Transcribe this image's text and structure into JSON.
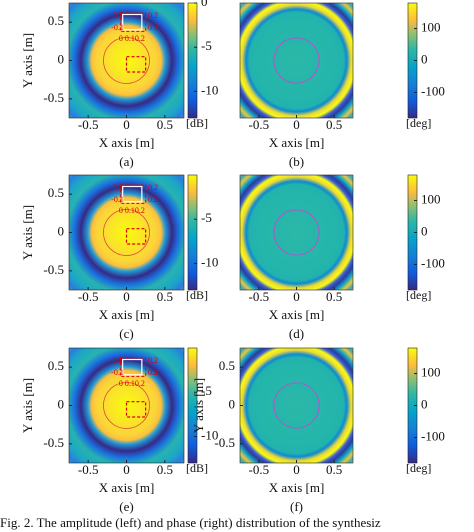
{
  "chart_data": [
    {
      "type": "heatmap",
      "kind": "amplitude",
      "xlabel": "X axis [m]",
      "ylabel": "Y axis [m]",
      "xlim": [
        -0.75,
        0.75
      ],
      "ylim": [
        -0.75,
        0.75
      ],
      "xticks": [
        -0.5,
        0,
        0.5
      ],
      "yticks": [
        0.5,
        0,
        -0.5
      ],
      "clim": [
        -13,
        0
      ],
      "cticks": [
        0,
        -5,
        -10
      ],
      "cunit": "[dB]",
      "caption": "(a)",
      "annotations": [
        "0.1",
        "0.2",
        "-0.1",
        "0.1",
        "0 0.10.2"
      ]
    },
    {
      "type": "heatmap",
      "kind": "phase",
      "xlabel": "X axis [m]",
      "xlim": [
        -0.75,
        0.75
      ],
      "ylim": [
        -0.75,
        0.75
      ],
      "xticks": [
        -0.5,
        0,
        0.5
      ],
      "clim": [
        -180,
        180
      ],
      "cticks": [
        100,
        0,
        -100
      ],
      "cunit": "[deg]",
      "caption": "(b)"
    },
    {
      "type": "heatmap",
      "kind": "amplitude",
      "xlabel": "X axis [m]",
      "ylabel": "Y axis [m]",
      "xlim": [
        -0.75,
        0.75
      ],
      "ylim": [
        -0.75,
        0.75
      ],
      "xticks": [
        -0.5,
        0,
        0.5
      ],
      "yticks": [
        0.5,
        0,
        -0.5
      ],
      "clim": [
        -13,
        0
      ],
      "cticks": [
        -5,
        -10
      ],
      "cunit": "[dB]",
      "caption": "(c)",
      "annotations": [
        "0.1",
        "0.2",
        "-0.1",
        "0.2",
        "0 0.10.2"
      ]
    },
    {
      "type": "heatmap",
      "kind": "phase",
      "xlabel": "X axis [m]",
      "xlim": [
        -0.75,
        0.75
      ],
      "ylim": [
        -0.75,
        0.75
      ],
      "xticks": [
        -0.5,
        0,
        0.5
      ],
      "clim": [
        -180,
        180
      ],
      "cticks": [
        100,
        0,
        -100
      ],
      "cunit": "[deg]",
      "caption": "(d)"
    },
    {
      "type": "heatmap",
      "kind": "amplitude",
      "xlabel": "X axis [m]",
      "ylabel": "Y axis [m]",
      "xlim": [
        -0.75,
        0.75
      ],
      "ylim": [
        -0.75,
        0.75
      ],
      "xticks": [
        -0.5,
        0,
        0.5
      ],
      "yticks": [
        0.5,
        0,
        -0.5
      ],
      "clim": [
        -13,
        0
      ],
      "cticks": [
        -5,
        -10
      ],
      "cunit": "[dB]",
      "caption": "(e)",
      "annotations": [
        "0.1",
        "0.2",
        "-0.1",
        "0.2",
        "0 0.10.2"
      ]
    },
    {
      "type": "heatmap",
      "kind": "phase",
      "xlabel": "X axis [m]",
      "ylabel": "Y axis [m]",
      "xlim": [
        -0.75,
        0.75
      ],
      "ylim": [
        -0.75,
        0.75
      ],
      "xticks": [
        -0.5,
        0,
        0.5
      ],
      "yticks": [
        0.5,
        0,
        -0.5
      ],
      "clim": [
        -180,
        180
      ],
      "cticks": [
        100,
        0,
        -100
      ],
      "cunit": "[deg]",
      "caption": "(f)"
    }
  ],
  "figure_caption": "Fig. 2.  The amplitude (left) and phase (right) distribution of the synthesiz"
}
